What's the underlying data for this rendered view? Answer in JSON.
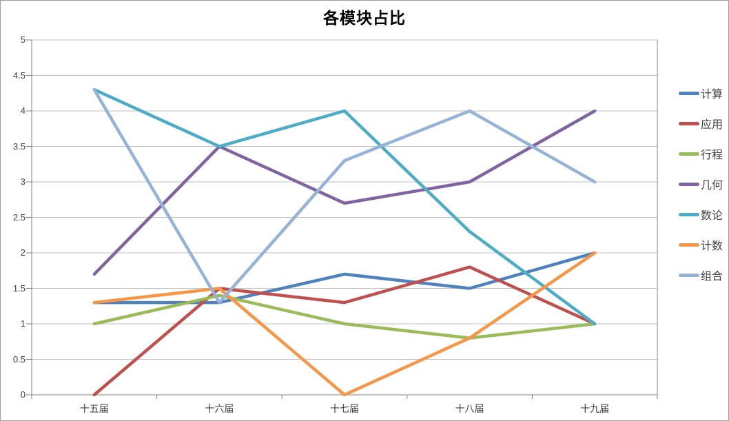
{
  "chart_data": {
    "type": "line",
    "title": "各模块占比",
    "categories": [
      "十五届",
      "十六届",
      "十七届",
      "十八届",
      "十九届"
    ],
    "series": [
      {
        "name": "计算",
        "color": "#4F81BD",
        "values": [
          1.3,
          1.3,
          1.7,
          1.5,
          2.0
        ]
      },
      {
        "name": "应用",
        "color": "#C0504D",
        "values": [
          0.0,
          1.5,
          1.3,
          1.8,
          1.0
        ]
      },
      {
        "name": "行程",
        "color": "#9BBB59",
        "values": [
          1.0,
          1.4,
          1.0,
          0.8,
          1.0
        ]
      },
      {
        "name": "几何",
        "color": "#8064A2",
        "values": [
          1.7,
          3.5,
          2.7,
          3.0,
          4.0
        ]
      },
      {
        "name": "数论",
        "color": "#4BACC6",
        "values": [
          4.3,
          3.5,
          4.0,
          2.3,
          1.0
        ]
      },
      {
        "name": "计数",
        "color": "#F79646",
        "values": [
          1.3,
          1.5,
          0.0,
          0.8,
          2.0
        ]
      },
      {
        "name": "组合",
        "color": "#95B3D7",
        "values": [
          4.3,
          1.3,
          3.3,
          4.0,
          3.0
        ]
      }
    ],
    "ylim": [
      0,
      5
    ],
    "ytick_step": 0.5,
    "yticks": [
      "0",
      "0.5",
      "1",
      "1.5",
      "2",
      "2.5",
      "3",
      "3.5",
      "4",
      "4.5",
      "5"
    ],
    "xlabel": "",
    "ylabel": "",
    "legend_position": "right",
    "grid": "horizontal",
    "grid_color": "#BFBFBF",
    "axis_color": "#808080",
    "text_color": "#3f3f3f",
    "line_width": 4.5
  }
}
